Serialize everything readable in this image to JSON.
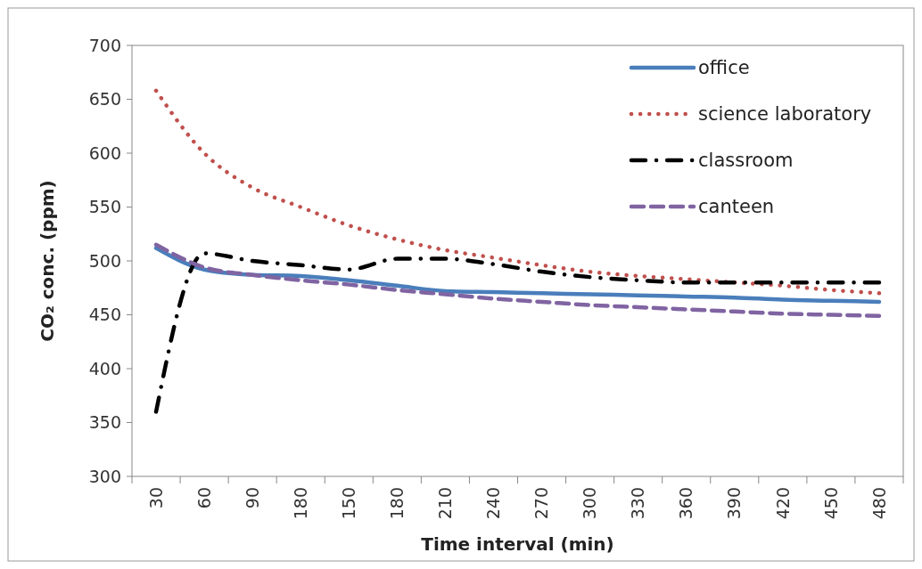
{
  "chart_data": {
    "type": "line",
    "xlabel": "Time interval (min)",
    "ylabel": "CO₂ conc. (ppm)",
    "categories": [
      "30",
      "60",
      "90",
      "180",
      "150",
      "180",
      "210",
      "240",
      "270",
      "300",
      "330",
      "360",
      "390",
      "420",
      "450",
      "480"
    ],
    "series": [
      {
        "name": "office",
        "color": "#4a7ebb",
        "line_style": "solid",
        "values": [
          512,
          492,
          487,
          486,
          482,
          477,
          472,
          471,
          470,
          469,
          468,
          467,
          466,
          464,
          463,
          462
        ]
      },
      {
        "name": "science laboratory",
        "color": "#c0504d",
        "line_style": "dotted",
        "values": [
          658,
          600,
          568,
          550,
          533,
          520,
          510,
          503,
          496,
          490,
          486,
          483,
          480,
          477,
          473,
          470
        ]
      },
      {
        "name": "classroom",
        "color": "#000000",
        "line_style": "dashdot",
        "values": [
          360,
          507,
          500,
          496,
          492,
          502,
          502,
          497,
          490,
          485,
          482,
          480,
          480,
          480,
          480,
          480
        ]
      },
      {
        "name": "canteen",
        "color": "#8064a2",
        "line_style": "dashed",
        "values": [
          515,
          494,
          487,
          482,
          478,
          473,
          469,
          465,
          462,
          459,
          457,
          455,
          453,
          451,
          450,
          449
        ]
      }
    ],
    "ylim": [
      300,
      700
    ],
    "yticks": [
      300,
      350,
      400,
      450,
      500,
      550,
      600,
      650,
      700
    ],
    "legend": "top right",
    "marker": "none"
  }
}
